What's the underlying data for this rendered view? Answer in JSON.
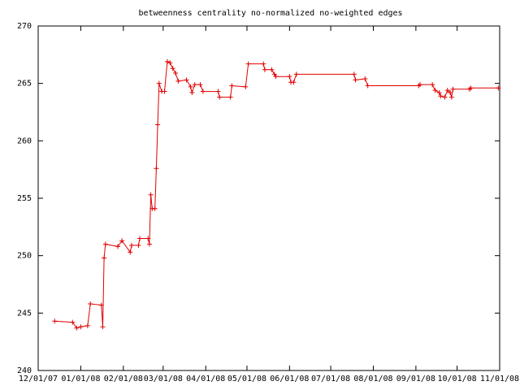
{
  "chart_data": {
    "type": "line",
    "title": "betweenness centrality no-normalized no-weighted edges",
    "x": [
      "12/13/07",
      "12/26/07",
      "12/29/07",
      "01/01/08",
      "01/06/08",
      "01/08/08",
      "01/16/08",
      "01/17/08",
      "01/18/08",
      "01/19/08",
      "01/28/08",
      "01/31/08",
      "02/06/08",
      "02/07/08",
      "02/12/08",
      "02/13/08",
      "02/19/08",
      "02/20/08",
      "02/21/08",
      "02/22/08",
      "02/24/08",
      "02/25/08",
      "02/26/08",
      "02/27/08",
      "02/29/08",
      "03/02/08",
      "03/04/08",
      "03/06/08",
      "03/08/08",
      "03/10/08",
      "03/12/08",
      "03/18/08",
      "03/21/08",
      "03/22/08",
      "03/24/08",
      "03/28/08",
      "03/30/08",
      "04/10/08",
      "04/11/08",
      "04/19/08",
      "04/20/08",
      "04/30/08",
      "05/02/08",
      "05/13/08",
      "05/14/08",
      "05/19/08",
      "05/21/08",
      "05/22/08",
      "06/01/08",
      "06/02/08",
      "06/04/08",
      "06/06/08",
      "07/18/08",
      "07/19/08",
      "07/26/08",
      "07/28/08",
      "09/03/08",
      "09/04/08",
      "09/13/08",
      "09/15/08",
      "09/18/08",
      "09/19/08",
      "09/22/08",
      "09/24/08",
      "09/26/08",
      "09/27/08",
      "09/28/08",
      "10/10/08",
      "10/11/08",
      "10/31/08"
    ],
    "series": [
      {
        "color": "#e00000",
        "values": [
          244.3,
          244.2,
          243.7,
          243.8,
          243.9,
          245.8,
          245.7,
          243.8,
          249.8,
          251.0,
          250.8,
          251.3,
          250.3,
          250.9,
          250.9,
          251.5,
          251.5,
          251.0,
          255.3,
          254.1,
          254.1,
          257.6,
          261.4,
          265.0,
          264.3,
          264.3,
          266.9,
          266.8,
          266.3,
          265.9,
          265.2,
          265.3,
          264.7,
          264.2,
          264.9,
          264.9,
          264.3,
          264.3,
          263.8,
          263.8,
          264.8,
          264.7,
          266.7,
          266.7,
          266.2,
          266.2,
          265.8,
          265.6,
          265.6,
          265.1,
          265.1,
          265.8,
          265.8,
          265.3,
          265.4,
          264.8,
          264.8,
          264.9,
          264.9,
          264.4,
          264.2,
          263.9,
          263.8,
          264.4,
          264.2,
          263.8,
          264.5,
          264.5,
          264.6,
          264.6
        ]
      }
    ],
    "xlim": [
      "12/01/07",
      "11/01/08"
    ],
    "xticks": [
      "12/01/07",
      "01/01/08",
      "02/01/08",
      "03/01/08",
      "04/01/08",
      "05/01/08",
      "06/01/08",
      "07/01/08",
      "08/01/08",
      "09/01/08",
      "10/01/08",
      "11/01/08"
    ],
    "ylim": [
      240,
      270
    ],
    "yticks": [
      240,
      245,
      250,
      255,
      260,
      265,
      270
    ]
  }
}
